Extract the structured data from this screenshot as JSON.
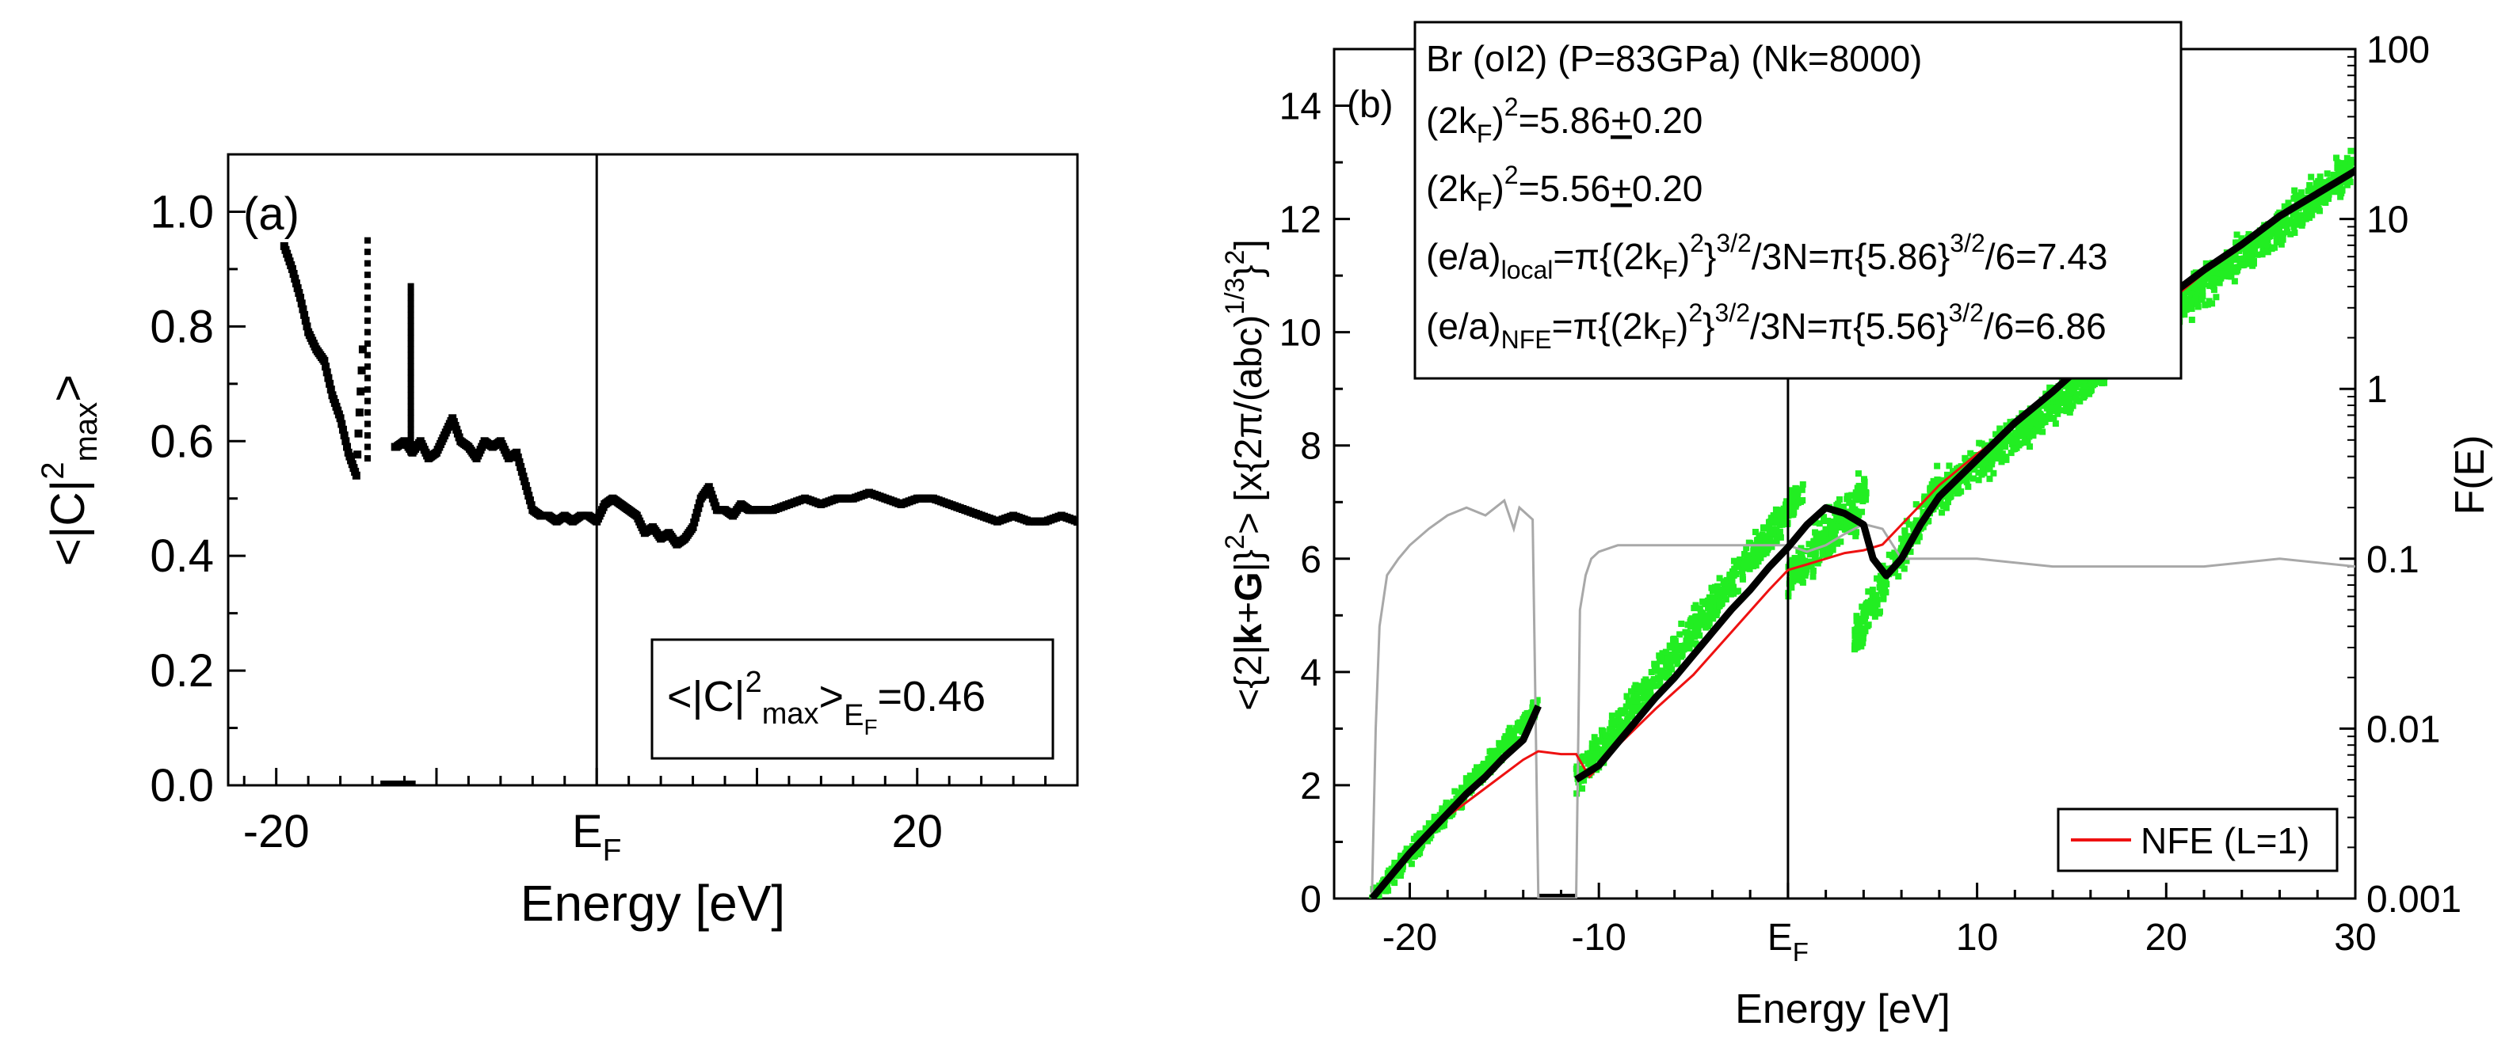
{
  "chart_data": [
    {
      "panel_label": "(a)",
      "type": "scatter",
      "xlabel": "Energy [eV]",
      "ylabel": "<|C|2max>",
      "xlim": [
        -23,
        30
      ],
      "ylim": [
        0,
        1.1
      ],
      "x_ticks": [
        {
          "value": -20,
          "label": "-20"
        },
        {
          "value": 0,
          "label": "EF"
        },
        {
          "value": 20,
          "label": "20"
        }
      ],
      "y_ticks": [
        "0.0",
        "0.2",
        "0.4",
        "0.6",
        "0.8",
        "1.0"
      ],
      "fermi_energy": 0,
      "annotation": "<|C|2max>EF=0.46",
      "series": [
        {
          "x": [
            -19.5,
            -19.0,
            -18.5,
            -18.0,
            -17.5,
            -17.0,
            -16.5,
            -16.0,
            -15.5,
            -15.0,
            -14.6,
            -14.0,
            -13.5,
            -13.0,
            -12.5,
            -12.0,
            -11.5,
            -11.0,
            -10.5,
            -10.0,
            -9.5,
            -9.0,
            -8.5,
            -8.0,
            -7.5,
            -7.0,
            -6.5,
            -6.0,
            -5.5,
            -5.0,
            -4.5,
            -4.0,
            -3.5,
            -3.0,
            -2.5,
            -2.0,
            -1.5,
            -1.0,
            -0.5,
            0.0,
            0.5,
            1.0,
            1.5,
            2.0,
            2.5,
            3.0,
            3.5,
            4.0,
            4.5,
            5.0,
            5.5,
            6.0,
            6.5,
            7.0,
            7.5,
            8.0,
            8.5,
            9.0,
            9.5,
            10.0,
            11.0,
            12.0,
            13.0,
            14.0,
            15.0,
            16.0,
            17.0,
            18.0,
            19.0,
            20.0,
            21.0,
            22.0,
            23.0,
            24.0,
            25.0,
            26.0,
            27.0,
            28.0,
            29.0,
            30.0
          ],
          "y": [
            0.94,
            0.9,
            0.85,
            0.79,
            0.76,
            0.74,
            0.68,
            0.64,
            0.58,
            0.54,
            0.76,
            0.6,
            0.59,
            0.59,
            0.59,
            0.6,
            0.58,
            0.6,
            0.57,
            0.58,
            0.61,
            0.64,
            0.6,
            0.59,
            0.57,
            0.6,
            0.59,
            0.6,
            0.57,
            0.58,
            0.53,
            0.48,
            0.47,
            0.47,
            0.46,
            0.47,
            0.46,
            0.47,
            0.47,
            0.46,
            0.49,
            0.5,
            0.49,
            0.48,
            0.47,
            0.44,
            0.45,
            0.43,
            0.44,
            0.42,
            0.43,
            0.45,
            0.5,
            0.52,
            0.48,
            0.48,
            0.47,
            0.49,
            0.48,
            0.48,
            0.48,
            0.49,
            0.5,
            0.49,
            0.5,
            0.5,
            0.51,
            0.5,
            0.49,
            0.5,
            0.5,
            0.49,
            0.48,
            0.47,
            0.46,
            0.47,
            0.46,
            0.46,
            0.47,
            0.46
          ]
        },
        {
          "x": [
            -14.3,
            -14.3,
            -14.3,
            -14.3,
            -14.3,
            -14.3,
            -14.3,
            -14.3,
            -14.3,
            -14.3,
            -14.3,
            -14.3,
            -14.3,
            -14.3,
            -14.3,
            -14.3,
            -14.3,
            -14.3,
            -14.3,
            -14.3
          ],
          "y": [
            0.95,
            0.93,
            0.91,
            0.89,
            0.87,
            0.85,
            0.83,
            0.81,
            0.79,
            0.77,
            0.75,
            0.73,
            0.71,
            0.69,
            0.67,
            0.65,
            0.63,
            0.61,
            0.59,
            0.57
          ]
        },
        {
          "x": [
            -11.6,
            -11.6,
            -11.6,
            -11.6,
            -11.6,
            -11.6,
            -11.6,
            -11.6,
            -11.6,
            -11.6,
            -11.6,
            -11.6,
            -11.6,
            -11.6,
            -11.6,
            -11.6,
            -11.6,
            -11.6,
            -11.6,
            -11.6,
            -11.6,
            -11.6,
            -11.6,
            -11.6,
            -11.6,
            -11.6,
            -11.6,
            -11.6,
            -11.6,
            -11.6
          ],
          "y": [
            0.87,
            0.86,
            0.85,
            0.84,
            0.83,
            0.82,
            0.81,
            0.8,
            0.79,
            0.78,
            0.77,
            0.76,
            0.75,
            0.74,
            0.73,
            0.72,
            0.71,
            0.7,
            0.69,
            0.68,
            0.67,
            0.66,
            0.65,
            0.64,
            0.63,
            0.62,
            0.61,
            0.6,
            0.59,
            0.58
          ]
        }
      ],
      "gap_bar": {
        "x_from": -13.5,
        "x_to": -11.3,
        "y": 0
      }
    },
    {
      "panel_label": "(b)",
      "type": "scatter",
      "xlabel": "Energy [eV]",
      "ylabel": "<{2|k+G|}2> [x{2π/(abc)1/3}2]",
      "y2label": "F(E)",
      "xlim": [
        -24,
        30
      ],
      "ylim": [
        0,
        15
      ],
      "y2lim": [
        0.001,
        100
      ],
      "y2scale": "log",
      "x_ticks": [
        {
          "value": -20,
          "label": "-20"
        },
        {
          "value": -10,
          "label": "-10"
        },
        {
          "value": 0,
          "label": "EF"
        },
        {
          "value": 10,
          "label": "10"
        },
        {
          "value": 20,
          "label": "20"
        },
        {
          "value": 30,
          "label": "30"
        }
      ],
      "y_ticks": [
        "0",
        "2",
        "4",
        "6",
        "8",
        "10",
        "12",
        "14"
      ],
      "y2_ticks": [
        "0.001",
        "0.01",
        "0.1",
        "1",
        "10",
        "100"
      ],
      "fermi_energy": 0,
      "info_box": [
        "Br (oI2) (P=83GPa) (Nk=8000)",
        "(2kF)2=5.86±0.20",
        "(2kF)2=5.56±0.20",
        "(e/a)local=π{(2kF)2}3/2/3N=π{5.86}3/2/6=7.43",
        "(e/a)NFE=π{(2kF)2}3/2/3N=π{5.56}3/2/6=6.86"
      ],
      "legend": {
        "position": "bottom-right",
        "entries": [
          "NFE (L=1)"
        ]
      },
      "colors": {
        "scatter": "#22ee22",
        "average": "#000000",
        "nfe": "#ee1111",
        "dos": "#a8a8a8"
      },
      "series": [
        {
          "name": "NFE (L=1)",
          "x": [
            -22.0,
            -20.0,
            -18.0,
            -16.0,
            -14.0,
            -13.2,
            -12.0,
            -11.2,
            -10.5,
            -9.0,
            -7.0,
            -5.0,
            -3.0,
            -1.0,
            0.0,
            1.0,
            2.0,
            3.0,
            4.0,
            5.0,
            6.0,
            8.0,
            10.0,
            12.0,
            14.0,
            16.0,
            18.0,
            20.0,
            22.0,
            24.0,
            26.0,
            28.0,
            30.0
          ],
          "y": [
            0.0,
            0.8,
            1.45,
            1.95,
            2.45,
            2.6,
            2.55,
            2.55,
            2.15,
            2.7,
            3.35,
            3.95,
            4.7,
            5.45,
            5.8,
            5.9,
            6.0,
            6.1,
            6.15,
            6.25,
            6.6,
            7.3,
            7.85,
            8.35,
            8.95,
            9.45,
            10.0,
            10.5,
            11.05,
            11.5,
            12.05,
            12.5,
            12.85
          ]
        },
        {
          "x": [
            -22.0,
            -21.0,
            -20.0,
            -19.0,
            -18.0,
            -17.0,
            -16.0,
            -15.0,
            -14.0,
            -13.2,
            -11.2,
            -10.0,
            -9.0,
            -8.0,
            -7.0,
            -6.0,
            -5.0,
            -4.0,
            -3.0,
            -2.0,
            -1.0,
            0.0,
            1.0,
            2.0,
            3.0,
            4.0,
            4.5,
            5.2,
            6.0,
            7.0,
            8.0,
            10.0,
            12.0,
            14.0,
            16.0,
            18.0,
            20.0,
            22.0,
            24.0,
            26.0,
            28.0,
            30.0
          ],
          "y": [
            0.0,
            0.4,
            0.8,
            1.15,
            1.5,
            1.85,
            2.15,
            2.5,
            2.8,
            3.4,
            2.1,
            2.35,
            2.75,
            3.15,
            3.55,
            3.9,
            4.3,
            4.7,
            5.1,
            5.45,
            5.85,
            6.2,
            6.6,
            6.9,
            6.8,
            6.6,
            6.0,
            5.7,
            6.0,
            6.6,
            7.1,
            7.75,
            8.4,
            8.95,
            9.55,
            10.1,
            10.6,
            11.1,
            11.55,
            12.05,
            12.45,
            12.85
          ]
        },
        {
          "x": [
            -22.0,
            -21.8,
            -21.6,
            -21.2,
            -20.6,
            -20.0,
            -19.0,
            -18.0,
            -17.0,
            -16.0,
            -15.0,
            -14.5,
            -14.2,
            -13.5,
            -13.2,
            -12.5,
            -12.0,
            -11.6,
            -11.2,
            -11.0,
            -10.7,
            -10.4,
            -10.0,
            -9.0,
            -8.0,
            -6.0,
            -4.0,
            -2.0,
            0.0,
            1.0,
            2.0,
            3.0,
            4.0,
            5.0,
            6.0,
            8.0,
            10.0,
            14.0,
            18.0,
            22.0,
            26.0,
            30.0
          ],
          "y": [
            0.001,
            0.01,
            0.04,
            0.08,
            0.1,
            0.12,
            0.15,
            0.18,
            0.2,
            0.18,
            0.22,
            0.15,
            0.2,
            0.17,
            0.001,
            0.001,
            0.001,
            0.001,
            0.001,
            0.05,
            0.08,
            0.1,
            0.11,
            0.12,
            0.12,
            0.12,
            0.12,
            0.12,
            0.12,
            0.11,
            0.12,
            0.14,
            0.16,
            0.15,
            0.1,
            0.1,
            0.1,
            0.09,
            0.09,
            0.09,
            0.1,
            0.09
          ]
        }
      ],
      "green_bands": [
        {
          "x_from": -22.0,
          "x_to": -13.2,
          "y_start": 0.0,
          "y_end": 3.4,
          "spread": 0.5
        },
        {
          "x_from": -11.2,
          "x_to": 0.8,
          "y_start": 2.1,
          "y_end": 7.2,
          "spread": 0.9
        },
        {
          "x_from": 0.0,
          "x_to": 4.2,
          "y_start": 5.6,
          "y_end": 7.2,
          "spread": 1.3
        },
        {
          "x_from": 3.5,
          "x_to": 8.0,
          "y_start": 4.6,
          "y_end": 7.3,
          "spread": 1.0
        },
        {
          "x_from": 8.0,
          "x_to": 29.8,
          "y_start": 7.1,
          "y_end": 12.9,
          "spread": 1.0
        }
      ]
    }
  ]
}
